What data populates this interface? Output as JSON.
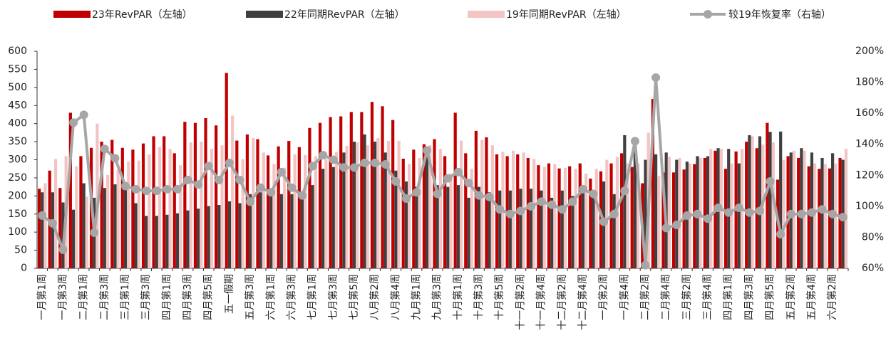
{
  "chart_data": {
    "type": "bar_line",
    "categories": [
      "一月第1周",
      null,
      "一月第3周",
      null,
      "二月第1周",
      null,
      "二月第3周",
      null,
      "三月第1周",
      null,
      "三月第3周",
      null,
      "四月第1周",
      null,
      "四月第3周",
      null,
      "四月第5周",
      null,
      "五一假期",
      null,
      "五月第3周",
      null,
      "六月第1周",
      null,
      "六月第3周",
      null,
      "七月第1周",
      null,
      "七月第3周",
      null,
      "七月第5周",
      null,
      "八月第2周",
      null,
      "八月第4周",
      null,
      "九月第1周",
      null,
      "九月第3周",
      null,
      "十月第1周",
      null,
      "十月第3周",
      null,
      "十月第5周",
      null,
      "十一月第2周",
      null,
      "十一月第4周",
      null,
      "十二月第2周",
      null,
      "十二月第4周",
      null,
      "一月第2周",
      null,
      "一月第4周",
      null,
      "二月第2周",
      null,
      "二月第4周",
      null,
      "三月第2周",
      null,
      "三月第4周",
      null,
      "四月第1周",
      null,
      "四月第3周",
      null,
      "四月第5周",
      null,
      "五月第2周",
      null,
      "五月第4周",
      null,
      "六月第2周",
      null
    ],
    "series": [
      {
        "name": "23年RevPAR（左轴）",
        "color": "#c00000",
        "axis": "y",
        "values": [
          220,
          270,
          222,
          430,
          310,
          333,
          350,
          355,
          333,
          328,
          345,
          365,
          365,
          318,
          405,
          402,
          415,
          395,
          540,
          353,
          370,
          357,
          312,
          337,
          352,
          335,
          388,
          402,
          418,
          420,
          432,
          432,
          460,
          448,
          410,
          303,
          328,
          343,
          357,
          310,
          430,
          318,
          380,
          362,
          315,
          310,
          315,
          305,
          285,
          290,
          276,
          282,
          290,
          248,
          268,
          290,
          318,
          280,
          235,
          468,
          265,
          265,
          273,
          288,
          305,
          325,
          275,
          323,
          350,
          332,
          402,
          245,
          310,
          305,
          282,
          275,
          276,
          305
        ]
      },
      {
        "name": "22年同期RevPAR（左轴）",
        "color": "#404040",
        "axis": "y",
        "values": [
          210,
          210,
          182,
          162,
          235,
          195,
          222,
          232,
          225,
          180,
          145,
          145,
          148,
          152,
          160,
          165,
          172,
          175,
          185,
          180,
          205,
          210,
          200,
          205,
          205,
          210,
          230,
          275,
          280,
          320,
          350,
          370,
          350,
          320,
          270,
          240,
          225,
          335,
          230,
          225,
          230,
          195,
          225,
          210,
          215,
          215,
          220,
          220,
          215,
          195,
          215,
          200,
          210,
          200,
          240,
          205,
          368,
          345,
          300,
          315,
          320,
          300,
          295,
          310,
          310,
          332,
          330,
          290,
          368,
          365,
          377,
          378,
          320,
          332,
          320,
          305,
          318,
          300
        ]
      },
      {
        "name": "19年同期RevPAR（左轴）",
        "color": "#f2c4c4",
        "axis": "y",
        "values": [
          235,
          302,
          310,
          282,
          198,
          400,
          258,
          272,
          295,
          298,
          315,
          335,
          330,
          285,
          348,
          350,
          330,
          340,
          422,
          302,
          360,
          320,
          288,
          278,
          315,
          313,
          310,
          302,
          322,
          338,
          348,
          340,
          360,
          352,
          352,
          288,
          305,
          340,
          330,
          262,
          353,
          275,
          355,
          340,
          322,
          325,
          320,
          302,
          280,
          288,
          278,
          275,
          262,
          275,
          300,
          308,
          290,
          290,
          375,
          255,
          308,
          305,
          290,
          305,
          330,
          330,
          290,
          330,
          365,
          342,
          348,
          300,
          325,
          325,
          290,
          288,
          290,
          330
        ]
      },
      {
        "name": "较19年恢复率（右轴）",
        "color": "#a6a6a6",
        "axis": "y2",
        "type": "line",
        "values": [
          94,
          89,
          72,
          154,
          159,
          83,
          137,
          131,
          113,
          111,
          110,
          110,
          111,
          111,
          117,
          114,
          126,
          117,
          128,
          117,
          103,
          112,
          109,
          122,
          112,
          107,
          126,
          133,
          130,
          125,
          125,
          128,
          128,
          127,
          116,
          105,
          109,
          136,
          108,
          118,
          122,
          115,
          107,
          106,
          98,
          95,
          97,
          100,
          103,
          101,
          98,
          103,
          111,
          108,
          90,
          95,
          110,
          142,
          62,
          183,
          86,
          88,
          94,
          95,
          92,
          99,
          96,
          99,
          96,
          97,
          116,
          82,
          95,
          95,
          96,
          98,
          95,
          93
        ]
      }
    ],
    "ylim": [
      0,
      600
    ],
    "yticks": [
      0,
      50,
      100,
      150,
      200,
      250,
      300,
      350,
      400,
      450,
      500,
      550,
      600
    ],
    "y2lim": [
      60,
      200
    ],
    "y2ticks": [
      {
        "value": 60,
        "label": "60%"
      },
      {
        "value": 80,
        "label": "80%"
      },
      {
        "value": 100,
        "label": "100%"
      },
      {
        "value": 120,
        "label": "120%"
      },
      {
        "value": 140,
        "label": "140%"
      },
      {
        "value": 160,
        "label": "160%"
      },
      {
        "value": 180,
        "label": "180%"
      },
      {
        "value": 200,
        "label": "200%"
      }
    ],
    "legend": "top",
    "grid": false
  }
}
